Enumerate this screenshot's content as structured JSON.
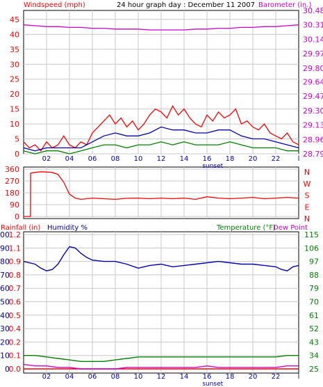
{
  "colors": {
    "wind_red": "#ff0000",
    "wind_blue": "#0000b0",
    "wind_green": "#008000",
    "baro_magenta": "#cc00cc",
    "dir_red": "#ff0000",
    "hum_blue": "#0000b0",
    "rain_red": "#ff0000",
    "temp_green": "#008000",
    "dew_magenta": "#cc00cc",
    "grid": "#c8c8c8",
    "frame": "#000000",
    "sunset_label": "#0000b0"
  },
  "chart_data": [
    {
      "type": "line",
      "title": "24 hour graph day : December 11 2007",
      "xlabel": "",
      "x_ticks": [
        "02",
        "04",
        "06",
        "08",
        "10",
        "12",
        "14",
        "16",
        "18",
        "20",
        "22",
        "l"
      ],
      "sunset_label": "sunset",
      "grid": true,
      "left_axis": {
        "label": "Windspeed (mph)",
        "ticks": [
          "0",
          "5",
          "10",
          "15",
          "20",
          "25",
          "30",
          "35",
          "40",
          "45"
        ],
        "ylim": [
          0,
          48
        ]
      },
      "right_axis": {
        "label": "Barometer (in.)",
        "ticks": [
          "28.79",
          "28.96",
          "29.13",
          "29.30",
          "29.47",
          "29.64",
          "29.80",
          "29.97",
          "30.14",
          "30.31",
          "30.48"
        ],
        "ylim": [
          28.79,
          30.48
        ]
      },
      "series": [
        {
          "color_key": "wind_red",
          "axis": "left",
          "x": [
            0,
            0.5,
            1,
            1.5,
            2,
            2.5,
            3,
            3.5,
            4,
            4.5,
            5,
            5.5,
            6,
            6.5,
            7,
            7.5,
            8,
            8.5,
            9,
            9.5,
            10,
            10.5,
            11,
            11.5,
            12,
            12.5,
            13,
            13.5,
            14,
            14.5,
            15,
            15.5,
            16,
            16.5,
            17,
            17.5,
            18,
            18.5,
            19,
            19.5,
            20,
            20.5,
            21,
            21.5,
            22,
            22.5,
            23,
            23.5,
            24
          ],
          "values": [
            4,
            2,
            3,
            1,
            4,
            2,
            3,
            6,
            3,
            2,
            4,
            3,
            7,
            9,
            11,
            13,
            10,
            12,
            9,
            11,
            8,
            10,
            13,
            15,
            14,
            12,
            16,
            13,
            15,
            12,
            10,
            9,
            13,
            11,
            14,
            12,
            13,
            15,
            10,
            11,
            9,
            8,
            10,
            7,
            6,
            5,
            7,
            4,
            3
          ]
        },
        {
          "color_key": "wind_blue",
          "axis": "left",
          "x": [
            0,
            1,
            2,
            3,
            4,
            5,
            6,
            7,
            8,
            9,
            10,
            11,
            12,
            13,
            14,
            15,
            16,
            17,
            18,
            19,
            20,
            21,
            22,
            23,
            24
          ],
          "values": [
            2,
            1,
            2,
            2,
            2,
            2,
            4,
            6,
            7,
            6,
            6,
            7,
            9,
            8,
            8,
            7,
            7,
            8,
            8,
            6,
            5,
            5,
            4,
            3,
            2
          ]
        },
        {
          "color_key": "wind_green",
          "axis": "left",
          "x": [
            0,
            1,
            2,
            3,
            4,
            5,
            6,
            7,
            8,
            9,
            10,
            11,
            12,
            13,
            14,
            15,
            16,
            17,
            18,
            19,
            20,
            21,
            22,
            23,
            24
          ],
          "values": [
            1,
            0,
            1,
            1,
            0,
            1,
            2,
            3,
            3,
            2,
            3,
            3,
            4,
            3,
            4,
            3,
            3,
            3,
            4,
            3,
            2,
            2,
            2,
            1,
            1
          ]
        },
        {
          "color_key": "baro_magenta",
          "axis": "right",
          "x": [
            0,
            1,
            2,
            3,
            4,
            5,
            6,
            7,
            8,
            9,
            10,
            11,
            12,
            13,
            14,
            15,
            16,
            17,
            18,
            19,
            20,
            21,
            22,
            23,
            24
          ],
          "values": [
            30.31,
            30.3,
            30.29,
            30.29,
            30.28,
            30.28,
            30.27,
            30.27,
            30.26,
            30.26,
            30.26,
            30.25,
            30.25,
            30.25,
            30.25,
            30.26,
            30.26,
            30.27,
            30.27,
            30.28,
            30.28,
            30.29,
            30.29,
            30.3,
            30.31
          ]
        }
      ]
    },
    {
      "type": "line",
      "xlabel": "",
      "grid": true,
      "left_axis": {
        "label": "",
        "ticks": [
          "360",
          "270",
          "180",
          "90",
          "0"
        ],
        "ylim": [
          0,
          360
        ]
      },
      "right_axis": {
        "label": "",
        "ticks": [
          "N",
          "W",
          "S",
          "E",
          "N"
        ]
      },
      "series": [
        {
          "color_key": "dir_red",
          "axis": "left",
          "x": [
            0,
            0.6,
            0.61,
            1,
            1.5,
            2,
            2.5,
            3,
            3.5,
            4,
            4.5,
            5,
            6,
            7,
            8,
            9,
            10,
            11,
            12,
            13,
            14,
            15,
            16,
            17,
            18,
            19,
            20,
            21,
            22,
            23,
            24
          ],
          "values": [
            0,
            0,
            330,
            335,
            340,
            338,
            335,
            320,
            260,
            170,
            140,
            130,
            140,
            135,
            130,
            138,
            140,
            135,
            140,
            135,
            140,
            130,
            150,
            140,
            135,
            140,
            145,
            135,
            140,
            145,
            140
          ]
        }
      ]
    },
    {
      "type": "line",
      "xlabel": "",
      "x_ticks": [
        "02",
        "04",
        "06",
        "08",
        "10",
        "12",
        "14",
        "16",
        "18",
        "20",
        "22",
        "l"
      ],
      "sunset_label": "sunset",
      "grid": true,
      "rain_axis": {
        "label": "Rainfall (in)",
        "ticks": [
          "0.0",
          "0.1",
          "0.2",
          "0.4",
          "0.5",
          "0.6",
          "0.7",
          "0.8",
          "0.9",
          "1.1",
          "1.2"
        ]
      },
      "humidity_axis": {
        "label": "Humidity %",
        "ticks": [
          "0",
          "10",
          "20",
          "30",
          "40",
          "50",
          "60",
          "70",
          "80",
          "90",
          "100"
        ],
        "ylim": [
          0,
          100
        ]
      },
      "temp_axis": {
        "label": "Temperature (°F)",
        "ticks": [
          "25",
          "34",
          "43",
          "52",
          "61",
          "70",
          "79",
          "88",
          "97",
          "106",
          "115"
        ],
        "ylim": [
          25,
          115
        ]
      },
      "dew_label": "Dew Point",
      "series": [
        {
          "color_key": "hum_blue",
          "axis": "humidity",
          "x": [
            0,
            1,
            1.5,
            2,
            2.5,
            3,
            3.5,
            4,
            4.5,
            5,
            5.5,
            6,
            7,
            8,
            9,
            10,
            11,
            12,
            13,
            14,
            15,
            16,
            17,
            18,
            19,
            20,
            21,
            22,
            22.5,
            23,
            23.5,
            24
          ],
          "values": [
            80,
            78,
            75,
            73,
            74,
            78,
            85,
            91,
            90,
            86,
            83,
            81,
            80,
            80,
            78,
            75,
            77,
            78,
            76,
            77,
            78,
            79,
            80,
            79,
            78,
            78,
            77,
            76,
            74,
            73,
            76,
            77
          ]
        },
        {
          "color_key": "rain_red",
          "axis": "humidity",
          "x": [
            0,
            24
          ],
          "values": [
            0,
            0
          ]
        },
        {
          "color_key": "temp_green",
          "axis": "temp",
          "x": [
            0,
            1,
            2,
            3,
            4,
            5,
            6,
            7,
            8,
            9,
            10,
            11,
            12,
            13,
            14,
            15,
            16,
            17,
            18,
            19,
            20,
            21,
            22,
            23,
            24
          ],
          "values": [
            34,
            34,
            33,
            32,
            31,
            30,
            30,
            30,
            31,
            32,
            33,
            33,
            33,
            33,
            33,
            33,
            33,
            33,
            33,
            33,
            33,
            33,
            33,
            34,
            34
          ]
        },
        {
          "color_key": "dew_magenta",
          "axis": "temp",
          "x": [
            0,
            1,
            2,
            3,
            4,
            5,
            6,
            7,
            8,
            9,
            10,
            11,
            12,
            13,
            14,
            15,
            16,
            17,
            18,
            19,
            20,
            21,
            22,
            23,
            24
          ],
          "values": [
            28,
            27,
            27,
            26,
            26,
            25,
            25,
            25,
            25,
            26,
            26,
            26,
            26,
            26,
            26,
            26,
            27,
            26,
            26,
            26,
            26,
            26,
            26,
            27,
            27
          ]
        }
      ]
    }
  ]
}
